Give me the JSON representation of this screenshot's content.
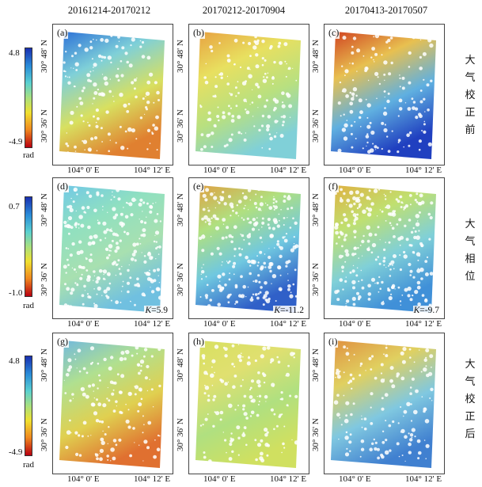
{
  "columns": [
    "20161214-20170212",
    "20170212-20170904",
    "20170413-20170507"
  ],
  "x_ticks": [
    "104° 0' E",
    "104° 12' E"
  ],
  "y_ticks": [
    "30° 48' N",
    "30° 36' N"
  ],
  "rows": [
    {
      "label": "大气校正前",
      "colorbar": {
        "max": "4.8",
        "min": "-4.9",
        "unit": "rad"
      },
      "panels": [
        {
          "label": "(a)",
          "k": ""
        },
        {
          "label": "(b)",
          "k": ""
        },
        {
          "label": "(c)",
          "k": ""
        }
      ]
    },
    {
      "label": "大气相位",
      "colorbar": {
        "max": "0.7",
        "min": "-1.0",
        "unit": "rad"
      },
      "panels": [
        {
          "label": "(d)",
          "k": "=5.9"
        },
        {
          "label": "(e)",
          "k": "=-11.2"
        },
        {
          "label": "(f)",
          "k": "=-9.7"
        }
      ]
    },
    {
      "label": "大气校正后",
      "colorbar": {
        "max": "4.8",
        "min": "-4.9",
        "unit": "rad"
      },
      "panels": [
        {
          "label": "(g)",
          "k": ""
        },
        {
          "label": "(h)",
          "k": ""
        },
        {
          "label": "(i)",
          "k": ""
        }
      ]
    }
  ],
  "k_symbol": "K",
  "colors": {
    "high": "#1a2fb0",
    "mid": "#f0e030",
    "low": "#b80010"
  }
}
